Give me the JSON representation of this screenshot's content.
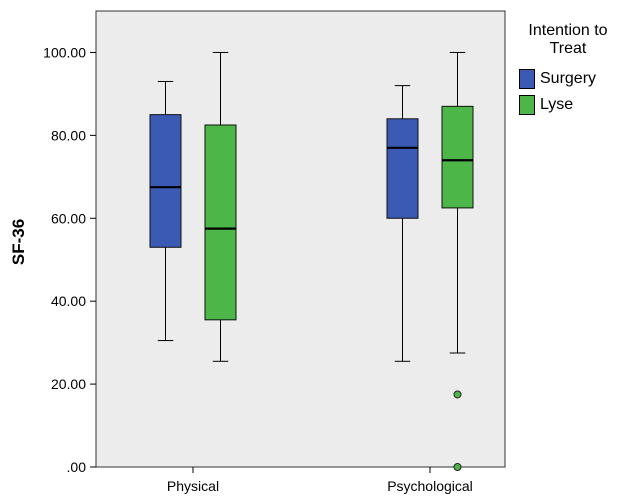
{
  "chart_data": {
    "type": "boxplot",
    "title": "",
    "xlabel": "",
    "ylabel": "SF-36",
    "ylim": [
      0,
      110
    ],
    "yticks": [
      0,
      20,
      40,
      60,
      80,
      100
    ],
    "ytick_labels": [
      ".00",
      "20.00",
      "40.00",
      "60.00",
      "80.00",
      "100.00"
    ],
    "categories": [
      "Physical",
      "Psychological"
    ],
    "legend_title": "Intention to Treat",
    "legend_position": "right",
    "grid": false,
    "series": [
      {
        "name": "Surgery",
        "color": "#3a5ab4",
        "boxes": [
          {
            "min": 30.5,
            "q1": 53,
            "median": 67.5,
            "q3": 85,
            "max": 93,
            "outliers": []
          },
          {
            "min": 25.5,
            "q1": 60,
            "median": 77,
            "q3": 84,
            "max": 92,
            "outliers": []
          }
        ]
      },
      {
        "name": "Lyse",
        "color": "#4cb648",
        "boxes": [
          {
            "min": 25.5,
            "q1": 35.5,
            "median": 57.5,
            "q3": 82.5,
            "max": 100,
            "outliers": []
          },
          {
            "min": 27.5,
            "q1": 62.5,
            "median": 74,
            "q3": 87,
            "max": 100,
            "outliers": [
              17.5,
              0
            ]
          }
        ]
      }
    ]
  }
}
